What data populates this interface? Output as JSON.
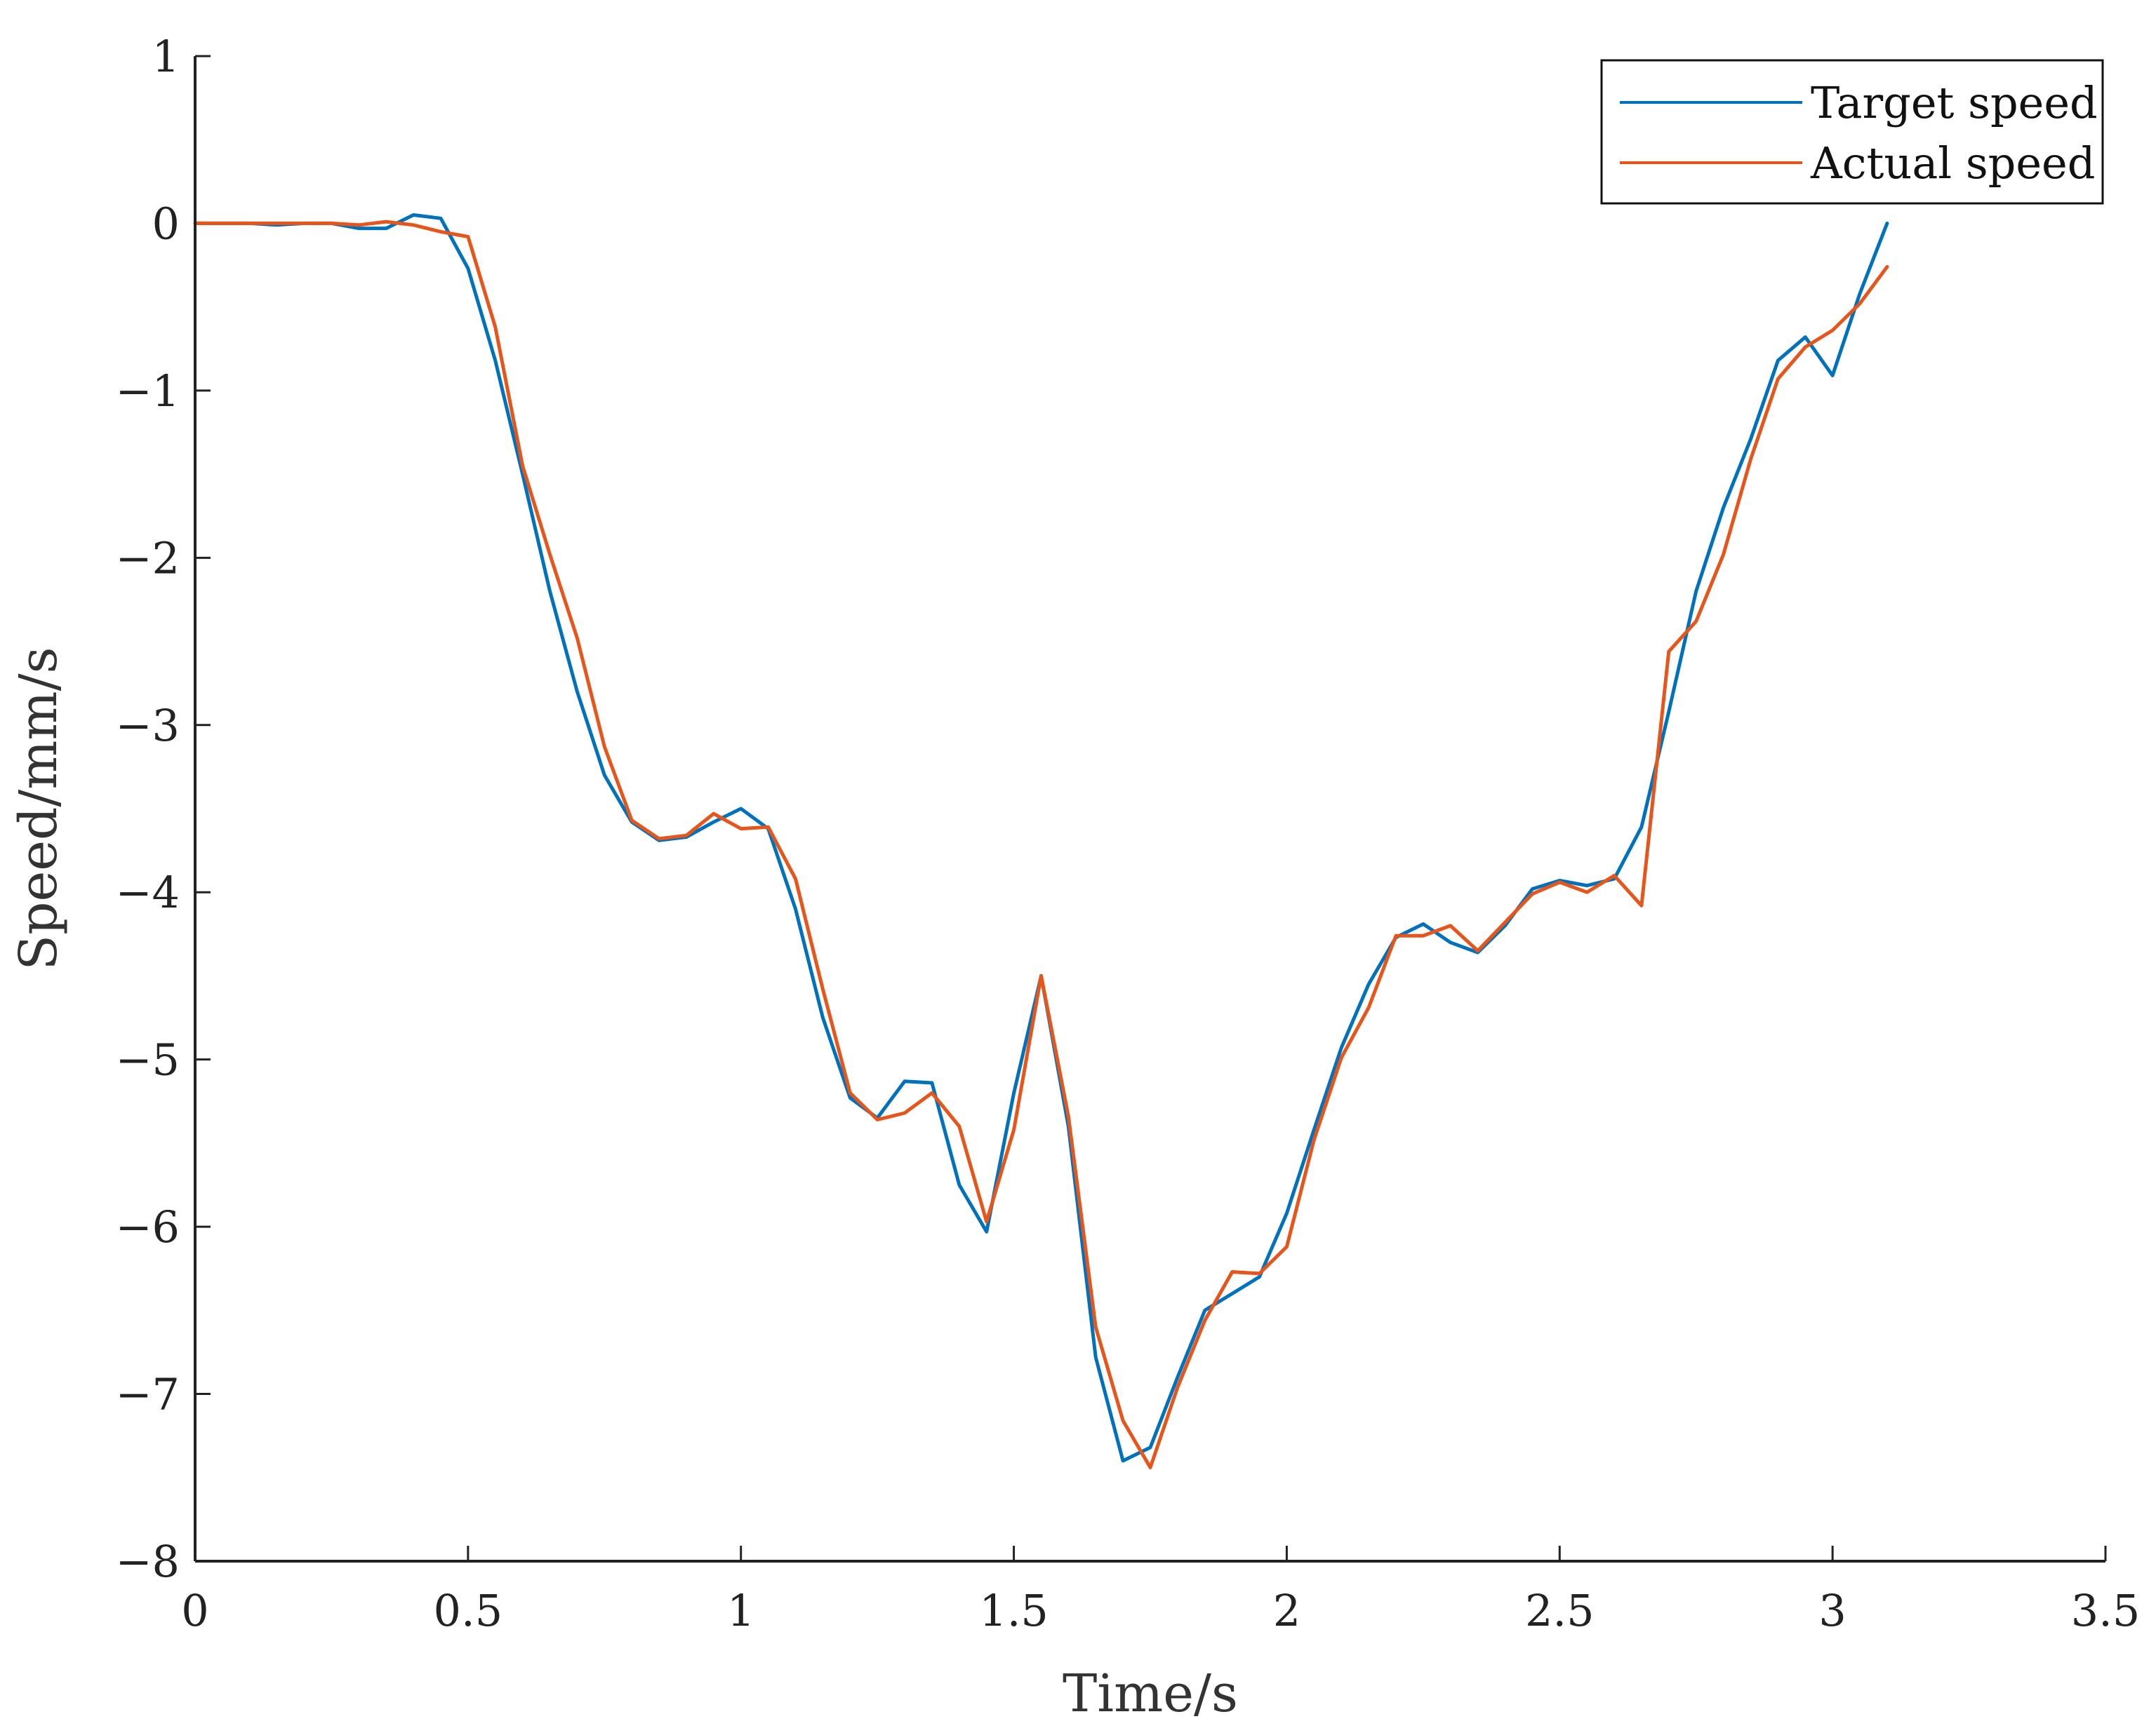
{
  "chart_data": {
    "type": "line",
    "title": "",
    "xlabel": "Time/s",
    "ylabel": "Speed/mm/s",
    "xlim": [
      0,
      3.5
    ],
    "ylim": [
      -8,
      1
    ],
    "x_ticks": [
      0,
      0.5,
      1,
      1.5,
      2,
      2.5,
      3,
      3.5
    ],
    "x_tick_labels": [
      "0",
      "0.5",
      "1",
      "1.5",
      "2",
      "2.5",
      "3",
      "3.5"
    ],
    "y_ticks": [
      1,
      0,
      -1,
      -2,
      -3,
      -4,
      -5,
      -6,
      -7,
      -8
    ],
    "y_tick_labels": [
      "1",
      "0",
      "−1",
      "−2",
      "−3",
      "−4",
      "−5",
      "−6",
      "−7",
      "−8"
    ],
    "grid": false,
    "legend_position": "top-right",
    "series": [
      {
        "name": "Target speed",
        "color": "#0072BD",
        "x": [
          0,
          0.05,
          0.1,
          0.15,
          0.2,
          0.25,
          0.3,
          0.35,
          0.4,
          0.45,
          0.5,
          0.55,
          0.6,
          0.65,
          0.7,
          0.75,
          0.8,
          0.85,
          0.9,
          0.95,
          1.0,
          1.05,
          1.1,
          1.15,
          1.2,
          1.25,
          1.3,
          1.35,
          1.4,
          1.45,
          1.5,
          1.55,
          1.6,
          1.65,
          1.7,
          1.75,
          1.8,
          1.85,
          1.9,
          1.95,
          2.0,
          2.05,
          2.1,
          2.15,
          2.2,
          2.25,
          2.3,
          2.35,
          2.4,
          2.45,
          2.5,
          2.55,
          2.6,
          2.65,
          2.7,
          2.75,
          2.8,
          2.85,
          2.9,
          2.95,
          3.0,
          3.05,
          3.1
        ],
        "y": [
          0,
          0,
          0,
          -0.01,
          0,
          0,
          -0.03,
          -0.03,
          0.05,
          0.03,
          -0.27,
          -0.82,
          -1.5,
          -2.2,
          -2.8,
          -3.3,
          -3.58,
          -3.69,
          -3.67,
          -3.58,
          -3.5,
          -3.62,
          -4.1,
          -4.75,
          -5.23,
          -5.35,
          -5.13,
          -5.14,
          -5.75,
          -6.03,
          -5.2,
          -4.5,
          -5.4,
          -6.78,
          -7.4,
          -7.32,
          -6.9,
          -6.5,
          -6.4,
          -6.3,
          -5.92,
          -5.42,
          -4.93,
          -4.55,
          -4.27,
          -4.19,
          -4.3,
          -4.36,
          -4.2,
          -3.98,
          -3.93,
          -3.96,
          -3.92,
          -3.61,
          -2.92,
          -2.2,
          -1.7,
          -1.29,
          -0.82,
          -0.68,
          -0.91,
          -0.42,
          0
        ]
      },
      {
        "name": "Actual speed",
        "color": "#E8551A",
        "x": [
          0,
          0.05,
          0.1,
          0.15,
          0.2,
          0.25,
          0.3,
          0.35,
          0.4,
          0.45,
          0.5,
          0.55,
          0.6,
          0.65,
          0.7,
          0.75,
          0.8,
          0.85,
          0.9,
          0.95,
          1.0,
          1.05,
          1.1,
          1.15,
          1.2,
          1.25,
          1.3,
          1.35,
          1.4,
          1.45,
          1.5,
          1.55,
          1.6,
          1.65,
          1.7,
          1.75,
          1.8,
          1.85,
          1.9,
          1.95,
          2.0,
          2.05,
          2.1,
          2.15,
          2.2,
          2.25,
          2.3,
          2.35,
          2.4,
          2.45,
          2.5,
          2.55,
          2.6,
          2.65,
          2.7,
          2.75,
          2.8,
          2.85,
          2.9,
          2.95,
          3.0,
          3.05,
          3.1
        ],
        "y": [
          0,
          0,
          0,
          0,
          0,
          0,
          -0.01,
          0.01,
          -0.01,
          -0.05,
          -0.08,
          -0.62,
          -1.45,
          -1.98,
          -2.48,
          -3.13,
          -3.57,
          -3.68,
          -3.66,
          -3.53,
          -3.62,
          -3.61,
          -3.92,
          -4.58,
          -5.2,
          -5.36,
          -5.32,
          -5.2,
          -5.4,
          -5.97,
          -5.42,
          -4.5,
          -5.34,
          -6.6,
          -7.16,
          -7.44,
          -6.96,
          -6.56,
          -6.27,
          -6.28,
          -6.12,
          -5.48,
          -4.99,
          -4.69,
          -4.26,
          -4.26,
          -4.2,
          -4.35,
          -4.18,
          -4.01,
          -3.94,
          -4.0,
          -3.9,
          -4.08,
          -2.56,
          -2.38,
          -1.98,
          -1.41,
          -0.93,
          -0.74,
          -0.64,
          -0.48,
          -0.26
        ]
      }
    ]
  }
}
